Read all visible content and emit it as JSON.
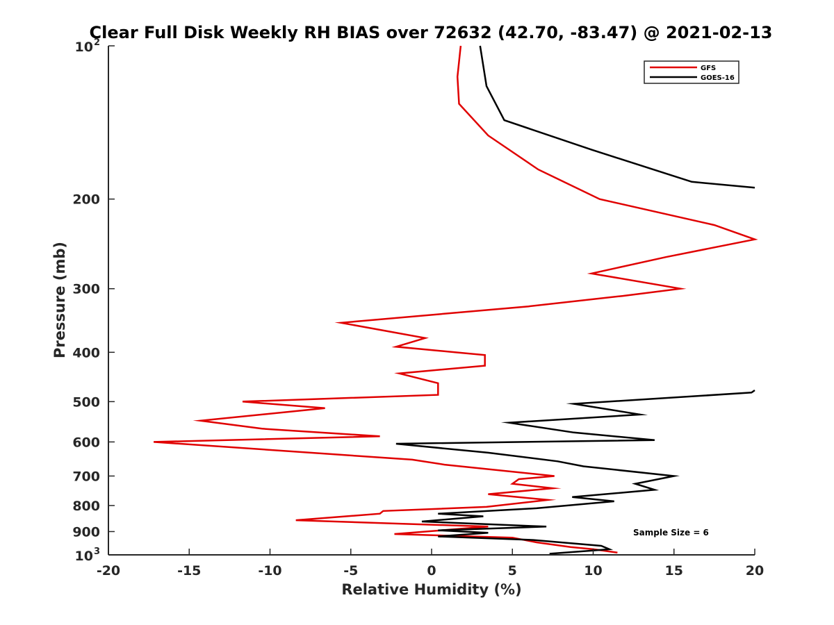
{
  "chart_data": {
    "type": "line",
    "title": "Clear Full Disk Weekly RH BIAS over 72632 (42.70, -83.47) @ 2021-02-13",
    "xlabel": "Relative Humidity (%)",
    "ylabel": "Pressure (mb)",
    "xlim": [
      -20,
      20
    ],
    "ylim": [
      100,
      1000
    ],
    "y_scale": "log",
    "y_reversed": true,
    "grid": false,
    "legend_position": "top-right",
    "x_ticks": [
      "-20",
      "-15",
      "-10",
      "-5",
      "0",
      "5",
      "10",
      "15",
      "20"
    ],
    "y_ticks": [
      {
        "value": 100,
        "base": "10",
        "exp": "2"
      },
      {
        "value": 200,
        "label": "200"
      },
      {
        "value": 300,
        "label": "300"
      },
      {
        "value": 400,
        "label": "400"
      },
      {
        "value": 500,
        "label": "500"
      },
      {
        "value": 600,
        "label": "600"
      },
      {
        "value": 700,
        "label": "700"
      },
      {
        "value": 800,
        "label": "800"
      },
      {
        "value": 900,
        "label": "900"
      },
      {
        "value": 1000,
        "base": "10",
        "exp": "3"
      }
    ],
    "annotation": "Sample Size = 6",
    "series": [
      {
        "name": "GFS",
        "color": "#e00000",
        "points": [
          [
            1.8,
            100
          ],
          [
            1.6,
            115
          ],
          [
            1.7,
            130
          ],
          [
            3.5,
            150
          ],
          [
            6.6,
            175
          ],
          [
            10.4,
            200
          ],
          [
            17.5,
            225
          ],
          [
            20.0,
            240
          ],
          [
            14.5,
            260
          ],
          [
            9.9,
            280
          ],
          [
            15.4,
            300
          ],
          [
            11.8,
            310
          ],
          [
            6.0,
            325
          ],
          [
            -5.6,
            350
          ],
          [
            -0.4,
            375
          ],
          [
            -2.2,
            390
          ],
          [
            3.3,
            405
          ],
          [
            3.3,
            425
          ],
          [
            -2.0,
            440
          ],
          [
            0.4,
            460
          ],
          [
            0.4,
            485
          ],
          [
            -11.7,
            500
          ],
          [
            -6.6,
            515
          ],
          [
            -14.3,
            545
          ],
          [
            -10.5,
            565
          ],
          [
            -3.2,
            585
          ],
          [
            -17.2,
            600
          ],
          [
            -1.2,
            650
          ],
          [
            0.8,
            665
          ],
          [
            7.6,
            700
          ],
          [
            5.4,
            710
          ],
          [
            5.0,
            725
          ],
          [
            7.5,
            740
          ],
          [
            3.5,
            760
          ],
          [
            7.2,
            780
          ],
          [
            3.4,
            805
          ],
          [
            -3.0,
            820
          ],
          [
            -3.2,
            830
          ],
          [
            -8.4,
            855
          ],
          [
            3.5,
            880
          ],
          [
            -2.3,
            910
          ],
          [
            5.0,
            925
          ],
          [
            6.5,
            945
          ],
          [
            8.6,
            965
          ],
          [
            10.0,
            975
          ],
          [
            11.5,
            990
          ]
        ]
      },
      {
        "name": "GOES-16",
        "color": "#000000",
        "points": [
          [
            3.0,
            100
          ],
          [
            3.4,
            120
          ],
          [
            4.5,
            140
          ],
          [
            9.9,
            160
          ],
          [
            16.1,
            185
          ],
          [
            20.0,
            190
          ],
          [
            null,
            200
          ],
          [
            20.0,
            475
          ],
          [
            19.8,
            480
          ],
          [
            8.8,
            505
          ],
          [
            12.9,
            530
          ],
          [
            4.8,
            550
          ],
          [
            8.8,
            575
          ],
          [
            13.8,
            595
          ],
          [
            -2.2,
            605
          ],
          [
            3.5,
            630
          ],
          [
            7.8,
            655
          ],
          [
            9.4,
            670
          ],
          [
            15.0,
            700
          ],
          [
            12.6,
            725
          ],
          [
            13.8,
            745
          ],
          [
            8.7,
            770
          ],
          [
            11.3,
            785
          ],
          [
            6.5,
            810
          ],
          [
            0.4,
            830
          ],
          [
            3.2,
            840
          ],
          [
            -0.6,
            860
          ],
          [
            7.1,
            880
          ],
          [
            0.4,
            895
          ],
          [
            3.5,
            905
          ],
          [
            0.4,
            920
          ],
          [
            6.3,
            935
          ],
          [
            10.5,
            960
          ],
          [
            11.0,
            975
          ],
          [
            9.7,
            982
          ],
          [
            7.3,
            995
          ]
        ]
      }
    ]
  }
}
